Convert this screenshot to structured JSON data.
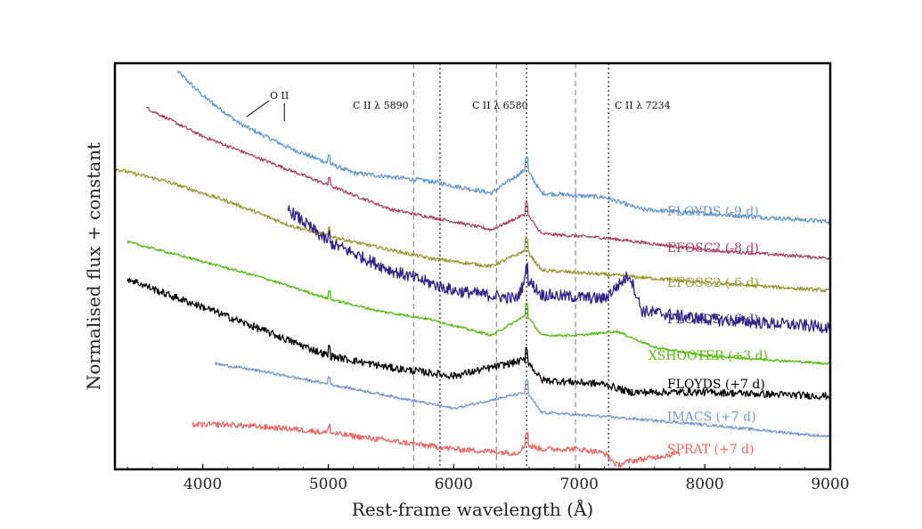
{
  "chart_data": {
    "type": "line",
    "xlabel": "Rest-frame wavelength (Å)",
    "ylabel": "Normalised flux + constant",
    "xlim": [
      3300,
      9000
    ],
    "ylim": [
      0,
      100
    ],
    "xticks": [
      4000,
      5000,
      6000,
      7000,
      8000,
      9000
    ],
    "xtick_labels": [
      "4000",
      "5000",
      "6000",
      "7000",
      "8000",
      "9000"
    ],
    "grid": false,
    "line_annotations": [
      {
        "label": "O II",
        "x_marks": [
          4350,
          4650
        ]
      },
      {
        "label": "C II λ 5890",
        "dashed_x": 5680,
        "dotted_x": 5890
      },
      {
        "label": "C II λ 6580",
        "dashed_x": 6340,
        "dotted_x": 6580
      },
      {
        "label": "C II λ 7234",
        "dashed_x": 6970,
        "dotted_x": 7234
      }
    ],
    "series": [
      {
        "name": "FLOYDS (-9 d)",
        "color": "#6699cc",
        "x_start": 3800,
        "x_end": 9000,
        "offset": 65,
        "noise": 1.1,
        "points": [
          [
            3800,
            98
          ],
          [
            4000,
            92
          ],
          [
            4300,
            85
          ],
          [
            4700,
            79
          ],
          [
            5200,
            73
          ],
          [
            5800,
            71
          ],
          [
            6300,
            68
          ],
          [
            6580,
            74
          ],
          [
            6700,
            68
          ],
          [
            7200,
            67
          ],
          [
            7500,
            64
          ],
          [
            8000,
            63
          ],
          [
            9000,
            61
          ]
        ],
        "label_pos": [
          7700,
          62.5
        ]
      },
      {
        "name": "EFOSC2 (-8 d)",
        "color": "#aa4466",
        "x_start": 3550,
        "x_end": 9000,
        "offset": 56,
        "noise": 0.8,
        "points": [
          [
            3550,
            89
          ],
          [
            4000,
            82
          ],
          [
            4500,
            76
          ],
          [
            5000,
            70
          ],
          [
            5500,
            64
          ],
          [
            6000,
            61
          ],
          [
            6300,
            59
          ],
          [
            6580,
            63
          ],
          [
            6700,
            58
          ],
          [
            7200,
            57
          ],
          [
            8000,
            54
          ],
          [
            9000,
            52
          ]
        ],
        "label_pos": [
          7700,
          53.5
        ]
      },
      {
        "name": "EFOSC2 (-6 d)",
        "color": "#999933",
        "x_start": 3300,
        "x_end": 9000,
        "offset": 46,
        "noise": 0.9,
        "points": [
          [
            3300,
            74
          ],
          [
            3700,
            71
          ],
          [
            4200,
            66
          ],
          [
            4700,
            60
          ],
          [
            5200,
            56
          ],
          [
            5800,
            52
          ],
          [
            6300,
            50
          ],
          [
            6580,
            54
          ],
          [
            6700,
            49
          ],
          [
            7200,
            48
          ],
          [
            8000,
            46
          ],
          [
            9000,
            44
          ]
        ],
        "label_pos": [
          7700,
          45
        ]
      },
      {
        "name": "FLOYDS (-6 d)",
        "color": "#332288",
        "x_start": 4680,
        "x_end": 9000,
        "offset": 38,
        "noise": 3.0,
        "points": [
          [
            4680,
            64
          ],
          [
            5000,
            56
          ],
          [
            5500,
            49
          ],
          [
            6000,
            44
          ],
          [
            6500,
            42
          ],
          [
            6580,
            47
          ],
          [
            6700,
            43
          ],
          [
            7200,
            42
          ],
          [
            7400,
            48
          ],
          [
            7500,
            39
          ],
          [
            8000,
            37
          ],
          [
            9000,
            35
          ]
        ],
        "label_pos": [
          7700,
          36
        ]
      },
      {
        "name": "XSHOOTER (+3 d)",
        "color": "#55bb11",
        "x_start": 3400,
        "x_end": 9000,
        "offset": 30,
        "noise": 0.6,
        "points": [
          [
            3400,
            56
          ],
          [
            3900,
            52
          ],
          [
            4500,
            47
          ],
          [
            5000,
            42
          ],
          [
            5400,
            39
          ],
          [
            5800,
            37
          ],
          [
            6300,
            33
          ],
          [
            6580,
            38
          ],
          [
            6700,
            33
          ],
          [
            7000,
            33
          ],
          [
            7300,
            34
          ],
          [
            7600,
            30
          ],
          [
            8000,
            28
          ],
          [
            9000,
            26
          ]
        ],
        "label_pos": [
          7550,
          27
        ]
      },
      {
        "name": "FLOYDS (+7 d)",
        "color": "#000000",
        "x_start": 3400,
        "x_end": 9000,
        "offset": 21,
        "noise": 1.8,
        "points": [
          [
            3400,
            47
          ],
          [
            3720,
            43
          ],
          [
            4000,
            40
          ],
          [
            4500,
            34
          ],
          [
            5000,
            28
          ],
          [
            5500,
            25
          ],
          [
            6000,
            23
          ],
          [
            6580,
            27
          ],
          [
            6700,
            22
          ],
          [
            7200,
            21
          ],
          [
            7400,
            19
          ],
          [
            8000,
            19
          ],
          [
            9000,
            18
          ]
        ],
        "label_pos": [
          7700,
          20
        ]
      },
      {
        "name": "IMACS (+7 d)",
        "color": "#7799cc",
        "x_start": 4100,
        "x_end": 9000,
        "offset": 13,
        "noise": 0.7,
        "points": [
          [
            4100,
            26
          ],
          [
            4500,
            24
          ],
          [
            5000,
            21
          ],
          [
            5500,
            18
          ],
          [
            6000,
            15
          ],
          [
            6580,
            19
          ],
          [
            6700,
            14
          ],
          [
            7200,
            13
          ],
          [
            8000,
            11
          ],
          [
            9000,
            8
          ]
        ],
        "label_pos": [
          7700,
          12
        ]
      },
      {
        "name": "SPRAT (+7 d)",
        "color": "#ee6666",
        "x_start": 3920,
        "x_end": 7800,
        "offset": 5,
        "noise": 1.4,
        "points": [
          [
            3920,
            11
          ],
          [
            4200,
            11
          ],
          [
            4700,
            10
          ],
          [
            5000,
            9
          ],
          [
            5500,
            7
          ],
          [
            6000,
            5
          ],
          [
            6500,
            4
          ],
          [
            6580,
            6
          ],
          [
            6700,
            5
          ],
          [
            7000,
            5
          ],
          [
            7200,
            4
          ],
          [
            7300,
            1
          ],
          [
            7400,
            2
          ],
          [
            7800,
            4
          ]
        ],
        "label_pos": [
          7700,
          4
        ]
      }
    ]
  }
}
